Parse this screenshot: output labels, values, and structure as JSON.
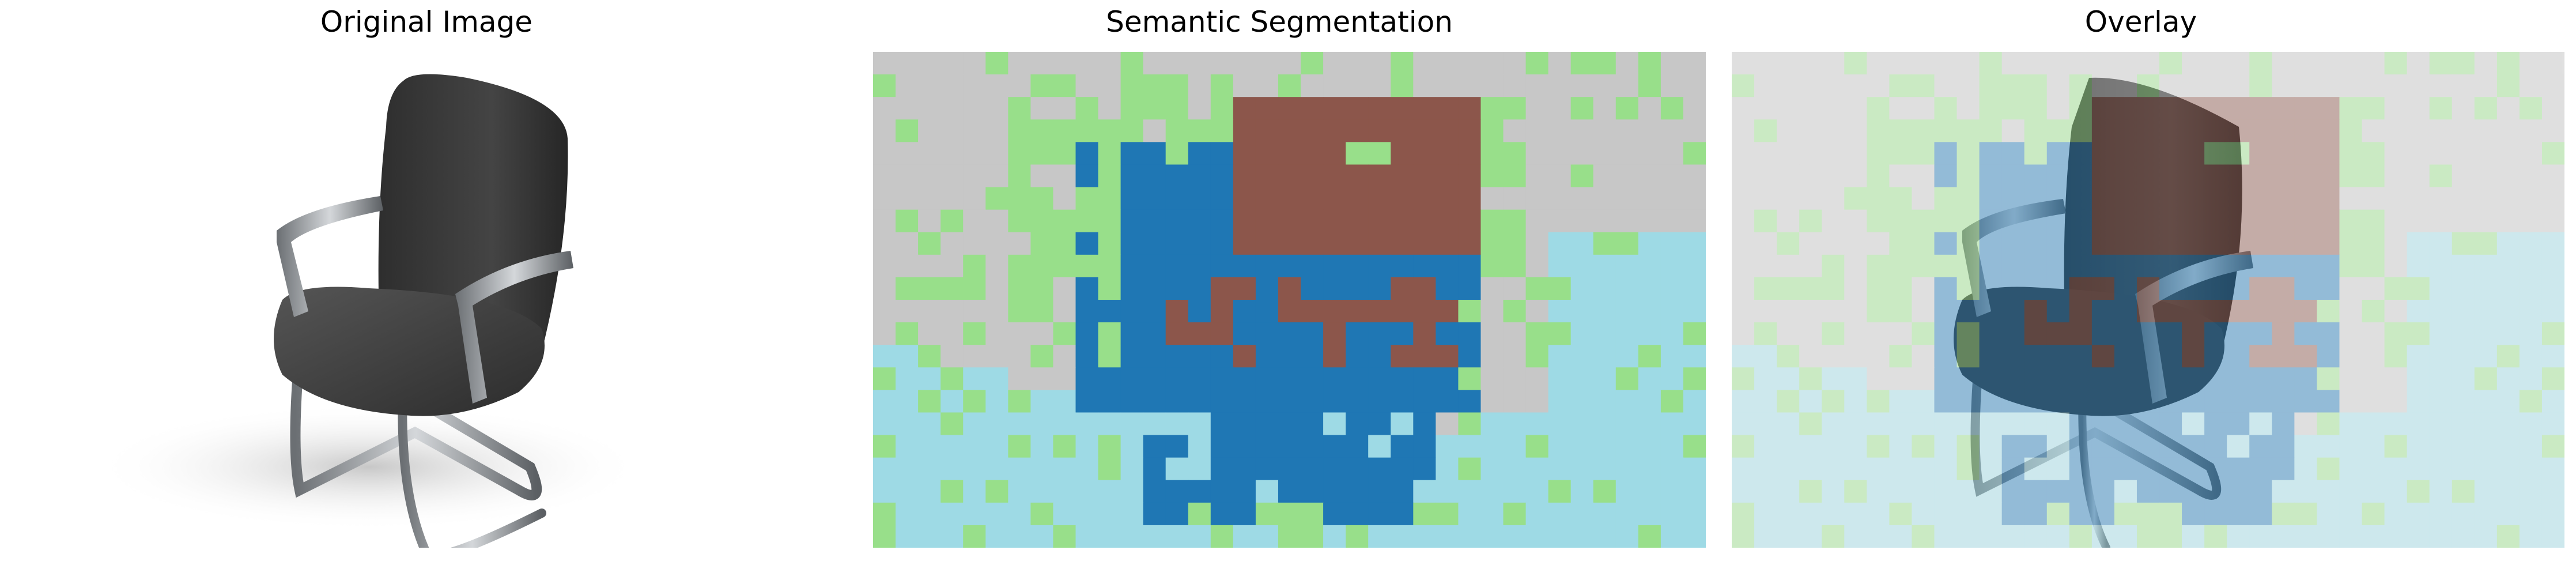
{
  "panels": [
    {
      "title": "Original Image"
    },
    {
      "title": "Semantic Segmentation"
    },
    {
      "title": "Overlay"
    }
  ],
  "colors": {
    "background_gray": "#c7c7c7",
    "background_green": "#98df8a",
    "floor_lightblue": "#9edae5",
    "chair_frame_blue": "#1f77b4",
    "chair_seat_brown": "#8c564b"
  },
  "icons": {
    "chair": "office-chair-icon"
  }
}
